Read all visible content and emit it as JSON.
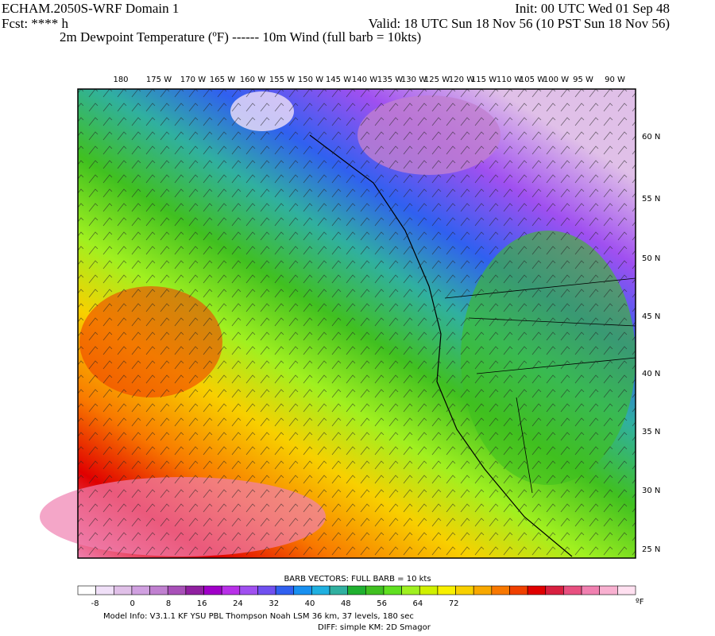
{
  "header": {
    "title": "ECHAM.2050S-WRF Domain 1",
    "init": "Init: 00 UTC Wed 01 Sep 48",
    "forecast": "Fcst: **** h",
    "valid": "Valid: 18 UTC Sun 18 Nov 56 (10 PST Sun 18 Nov 56)",
    "fields": "2m Dewpoint Temperature (ºF) ------ 10m Wind (full barb = 10kts)"
  },
  "map": {
    "longitude_labels": [
      "180",
      "175 W",
      "170 W",
      "165 W",
      "160 W",
      "155 W",
      "150 W",
      "145 W",
      "140 W",
      "135 W",
      "130 W",
      "125 W",
      "120 W",
      "115 W",
      "110 W",
      "105 W",
      "100 W",
      "95 W",
      "90 W"
    ],
    "latitude_labels": [
      "60 N",
      "55 N",
      "50 N",
      "45 N",
      "40 N",
      "35 N",
      "30 N",
      "25 N"
    ]
  },
  "colorbar": {
    "title": "BARB VECTORS:  FULL BARB = 10 kts",
    "colors": [
      "#ffffff",
      "#f0e0f8",
      "#e0c0e8",
      "#d0a0e0",
      "#c080d0",
      "#a850b8",
      "#9020a0",
      "#a000c8",
      "#b830e8",
      "#a050f0",
      "#7050f0",
      "#3060f0",
      "#1890f0",
      "#20b0e0",
      "#30b0a0",
      "#20b030",
      "#40c020",
      "#60e020",
      "#a0f020",
      "#d0f000",
      "#f8f000",
      "#f8d000",
      "#f8a800",
      "#f87800",
      "#f04000",
      "#e00000",
      "#d82040",
      "#e85080",
      "#f080b0",
      "#f8b0d0",
      "#ffe0f0"
    ],
    "ticks": [
      -8,
      0,
      8,
      16,
      24,
      32,
      40,
      48,
      56,
      64,
      72
    ],
    "unit": "ºF"
  },
  "footer": {
    "model_info": "Model Info: V3.1.1    KF     YSU PBL   Thompson     Noah LSM  36 km,    37 levels,  180 sec",
    "diff": "DIFF: simple KM: 2D Smagor"
  }
}
